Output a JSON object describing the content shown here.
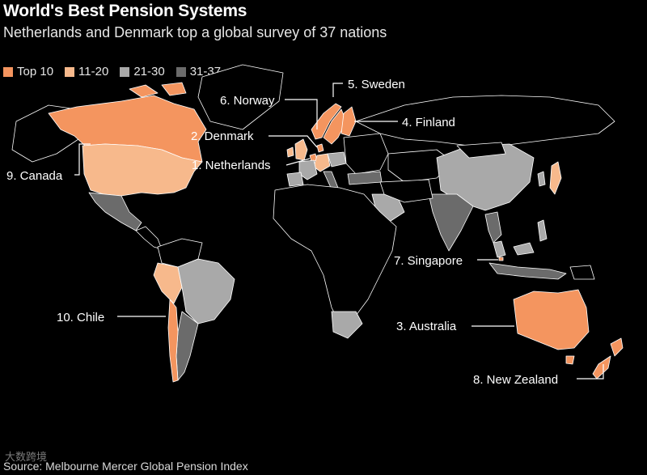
{
  "header": {
    "title": "World's Best Pension Systems",
    "subtitle": "Netherlands and Denmark top a global survey of 37 nations"
  },
  "legend": [
    {
      "label": "Top 10",
      "color": "#f4955f"
    },
    {
      "label": "11-20",
      "color": "#f7b98c"
    },
    {
      "label": "21-30",
      "color": "#a9a9a9"
    },
    {
      "label": "31-37",
      "color": "#6b6b6b"
    }
  ],
  "map_colors": {
    "background": "#000000",
    "unranked_land": "#000000",
    "borders": "#ffffff"
  },
  "country_labels": {
    "netherlands": "1. Netherlands",
    "denmark": "2. Denmark",
    "australia": "3. Australia",
    "finland": "4. Finland",
    "sweden": "5. Sweden",
    "norway": "6. Norway",
    "singapore": "7. Singapore",
    "new_zealand": "8. New Zealand",
    "canada": "9. Canada",
    "chile": "10. Chile"
  },
  "footer": {
    "source": "Source: Melbourne Mercer Global Pension Index",
    "watermark": "大数跨境"
  }
}
